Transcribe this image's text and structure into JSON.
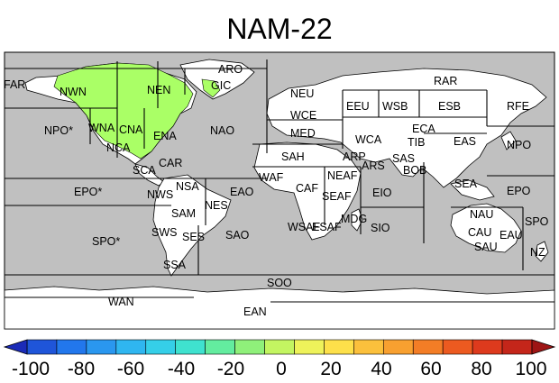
{
  "title": "NAM-22",
  "colors": {
    "ocean": "#c0c0c0",
    "land": "#ffffff",
    "highlight": "#aaff66",
    "border": "#000000",
    "colorbar": [
      "#1b2bb8",
      "#1f55d9",
      "#2277ec",
      "#2a97ef",
      "#2fb6f0",
      "#35cfe8",
      "#3fe2cf",
      "#63ec9f",
      "#8ff07a",
      "#c3f561",
      "#eef25a",
      "#fde04a",
      "#fbc03c",
      "#f8a030",
      "#f37d26",
      "#ec5a20",
      "#dd3a1d",
      "#c4261a",
      "#9e1515"
    ]
  },
  "regions": [
    {
      "id": "FAR",
      "label": "FAR"
    },
    {
      "id": "NWN",
      "label": "NWN"
    },
    {
      "id": "NEN",
      "label": "NEN"
    },
    {
      "id": "ARO",
      "label": "ARO"
    },
    {
      "id": "GIC",
      "label": "GIC"
    },
    {
      "id": "RAR",
      "label": "RAR"
    },
    {
      "id": "NEU",
      "label": "NEU"
    },
    {
      "id": "WCE",
      "label": "WCE"
    },
    {
      "id": "EEU",
      "label": "EEU"
    },
    {
      "id": "WSB",
      "label": "WSB"
    },
    {
      "id": "ESB",
      "label": "ESB"
    },
    {
      "id": "RFE",
      "label": "RFE"
    },
    {
      "id": "NPO_W",
      "label": "NPO*"
    },
    {
      "id": "WNA",
      "label": "WNA"
    },
    {
      "id": "CNA",
      "label": "CNA"
    },
    {
      "id": "ENA",
      "label": "ENA"
    },
    {
      "id": "NAO",
      "label": "NAO"
    },
    {
      "id": "MED",
      "label": "MED"
    },
    {
      "id": "WCA",
      "label": "WCA"
    },
    {
      "id": "ECA",
      "label": "ECA"
    },
    {
      "id": "TIB",
      "label": "TIB"
    },
    {
      "id": "EAS",
      "label": "EAS"
    },
    {
      "id": "NPO_E",
      "label": "NPO"
    },
    {
      "id": "NCA",
      "label": "NCA"
    },
    {
      "id": "SCA",
      "label": "SCA"
    },
    {
      "id": "CAR",
      "label": "CAR"
    },
    {
      "id": "SAH",
      "label": "SAH"
    },
    {
      "id": "ARP",
      "label": "ARP"
    },
    {
      "id": "SAS",
      "label": "SAS"
    },
    {
      "id": "ARS",
      "label": "ARS"
    },
    {
      "id": "BOB",
      "label": "BOB"
    },
    {
      "id": "WAF",
      "label": "WAF"
    },
    {
      "id": "NEAF",
      "label": "NEAF"
    },
    {
      "id": "SEA",
      "label": "SEA"
    },
    {
      "id": "EPO_W",
      "label": "EPO*"
    },
    {
      "id": "NWS",
      "label": "NWS"
    },
    {
      "id": "NSA",
      "label": "NSA"
    },
    {
      "id": "EAO",
      "label": "EAO"
    },
    {
      "id": "CAF",
      "label": "CAF"
    },
    {
      "id": "SEAF",
      "label": "SEAF"
    },
    {
      "id": "EIO",
      "label": "EIO"
    },
    {
      "id": "EPO_E",
      "label": "EPO"
    },
    {
      "id": "NES",
      "label": "NES"
    },
    {
      "id": "SAM",
      "label": "SAM"
    },
    {
      "id": "NAU",
      "label": "NAU"
    },
    {
      "id": "SPO_E",
      "label": "SPO"
    },
    {
      "id": "SWS",
      "label": "SWS"
    },
    {
      "id": "WSAF",
      "label": "WSAF"
    },
    {
      "id": "ESAF",
      "label": "ESAF"
    },
    {
      "id": "MDG",
      "label": "MDG"
    },
    {
      "id": "SIO",
      "label": "SIO"
    },
    {
      "id": "CAU",
      "label": "CAU"
    },
    {
      "id": "EAU",
      "label": "EAU"
    },
    {
      "id": "SPO_W",
      "label": "SPO*"
    },
    {
      "id": "SES",
      "label": "SES"
    },
    {
      "id": "SAO",
      "label": "SAO"
    },
    {
      "id": "SAU",
      "label": "SAU"
    },
    {
      "id": "NZ",
      "label": "NZ"
    },
    {
      "id": "SSA",
      "label": "SSA"
    },
    {
      "id": "SOO",
      "label": "SOO"
    },
    {
      "id": "WAN",
      "label": "WAN"
    },
    {
      "id": "EAN",
      "label": "EAN"
    }
  ],
  "colorbar": {
    "ticks": [
      "-100",
      "-80",
      "-60",
      "-40",
      "-20",
      "0",
      "20",
      "40",
      "60",
      "80",
      "100"
    ]
  }
}
